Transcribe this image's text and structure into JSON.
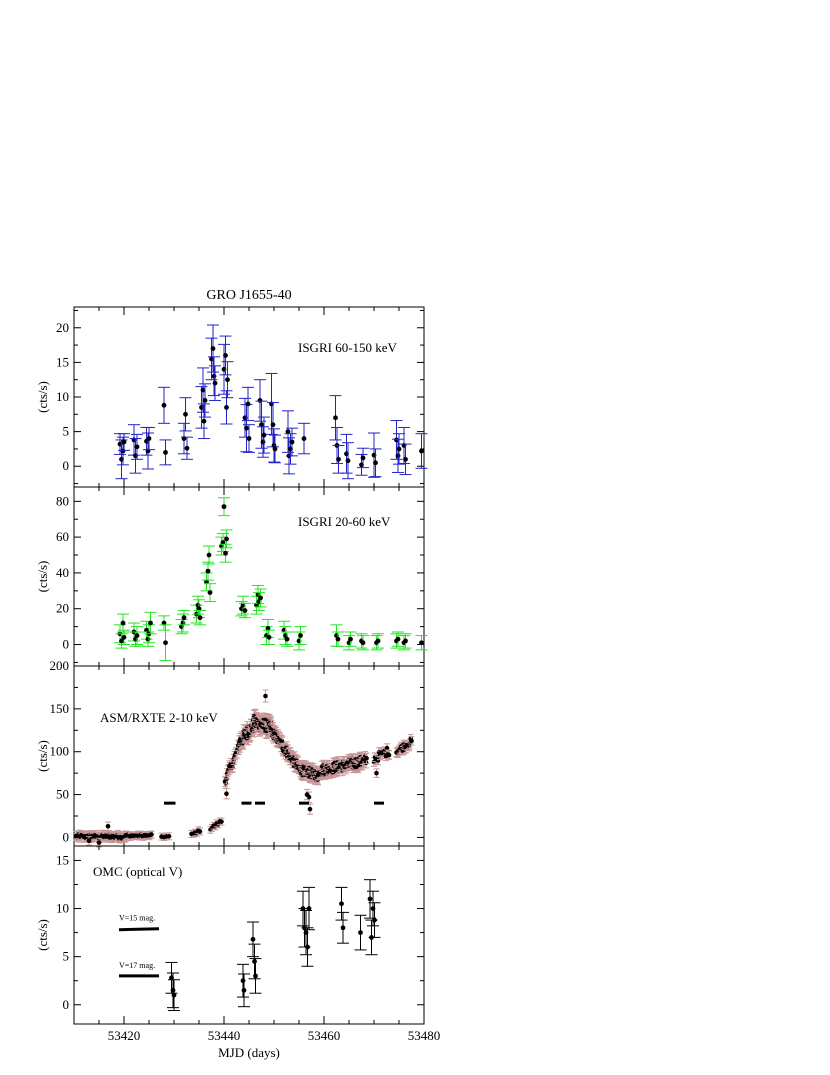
{
  "figure": {
    "title": "GRO J1655-40",
    "xlabel": "MJD (days)",
    "xlim": [
      53410,
      53480
    ],
    "xticks": [
      53420,
      53440,
      53460,
      53480
    ]
  },
  "colors": {
    "points": "#000000",
    "isgri_high_err": "#2323c8",
    "isgri_low_err": "#22e622",
    "asm_err": "#c89696"
  },
  "chart_data": [
    {
      "type": "scatter",
      "label": "ISGRI 60-150 keV",
      "ylabel": "(cts/s)",
      "ylim": [
        -3,
        23
      ],
      "yticks": [
        0,
        5,
        10,
        15,
        20
      ],
      "errcolor": "isgri_high_err",
      "points": [
        [
          53419.2,
          3.2,
          1.5
        ],
        [
          53419.5,
          1.0,
          2.8
        ],
        [
          53419.8,
          2.2,
          2.0
        ],
        [
          53420.0,
          3.5,
          1.2
        ],
        [
          53422.0,
          3.8,
          2.2
        ],
        [
          53422.3,
          1.5,
          2.5
        ],
        [
          53422.6,
          2.8,
          1.8
        ],
        [
          53424.5,
          3.6,
          2.0
        ],
        [
          53424.8,
          2.2,
          2.6
        ],
        [
          53425.0,
          4.0,
          1.6
        ],
        [
          53428.0,
          8.8,
          2.6
        ],
        [
          53428.3,
          2.0,
          1.8
        ],
        [
          53432.0,
          4.0,
          2.2
        ],
        [
          53432.3,
          7.5,
          2.4
        ],
        [
          53432.6,
          2.6,
          1.6
        ],
        [
          53435.5,
          8.5,
          3.0
        ],
        [
          53435.8,
          11.0,
          3.2
        ],
        [
          53436.0,
          6.5,
          2.5
        ],
        [
          53436.2,
          9.5,
          2.4
        ],
        [
          53437.5,
          15.5,
          3.0
        ],
        [
          53437.8,
          17.0,
          3.4
        ],
        [
          53438.0,
          13.0,
          2.8
        ],
        [
          53438.2,
          12.0,
          2.5
        ],
        [
          53440.0,
          14.0,
          3.6
        ],
        [
          53440.3,
          16.0,
          2.8
        ],
        [
          53440.5,
          8.5,
          2.4
        ],
        [
          53440.7,
          12.5,
          2.6
        ],
        [
          53444.2,
          7.0,
          2.8
        ],
        [
          53444.5,
          5.5,
          3.4
        ],
        [
          53444.8,
          9.0,
          2.4
        ],
        [
          53445.0,
          4.0,
          2.0
        ],
        [
          53447.2,
          9.5,
          3.0
        ],
        [
          53447.5,
          6.0,
          3.4
        ],
        [
          53447.8,
          3.5,
          2.2
        ],
        [
          53448.0,
          4.5,
          2.6
        ],
        [
          53449.5,
          9.0,
          4.4
        ],
        [
          53449.8,
          6.0,
          3.2
        ],
        [
          53450.0,
          3.0,
          2.4
        ],
        [
          53450.2,
          2.5,
          2.0
        ],
        [
          53452.8,
          5.0,
          3.0
        ],
        [
          53453.0,
          1.5,
          2.6
        ],
        [
          53453.3,
          2.5,
          2.2
        ],
        [
          53453.6,
          3.5,
          2.0
        ],
        [
          53456.0,
          4.0,
          2.2
        ],
        [
          53462.3,
          7.0,
          3.2
        ],
        [
          53462.6,
          3.0,
          2.6
        ],
        [
          53462.9,
          1.0,
          2.0
        ],
        [
          53464.5,
          1.8,
          2.8
        ],
        [
          53464.8,
          0.8,
          2.6
        ],
        [
          53467.5,
          0.2,
          1.5
        ],
        [
          53467.8,
          1.2,
          1.4
        ],
        [
          53470.0,
          1.6,
          3.2
        ],
        [
          53470.3,
          0.5,
          2.0
        ],
        [
          53474.5,
          3.8,
          2.8
        ],
        [
          53474.8,
          1.5,
          2.4
        ],
        [
          53475.0,
          2.5,
          2.2
        ],
        [
          53476.0,
          3.0,
          2.6
        ],
        [
          53476.3,
          1.0,
          2.2
        ],
        [
          53479.5,
          2.2,
          2.5
        ]
      ]
    },
    {
      "type": "scatter",
      "label": "ISGRI 20-60 keV",
      "ylabel": "(cts/s)",
      "ylim": [
        -12,
        88
      ],
      "yticks": [
        0,
        20,
        40,
        60,
        80
      ],
      "errcolor": "isgri_low_err",
      "points": [
        [
          53419.2,
          6,
          5
        ],
        [
          53419.5,
          2,
          4
        ],
        [
          53419.8,
          12,
          5
        ],
        [
          53420.0,
          4,
          4
        ],
        [
          53422.0,
          7,
          5
        ],
        [
          53422.3,
          3,
          4
        ],
        [
          53422.6,
          5,
          5
        ],
        [
          53424.5,
          8,
          5
        ],
        [
          53424.8,
          3,
          4
        ],
        [
          53425.0,
          6,
          5
        ],
        [
          53425.3,
          12,
          6
        ],
        [
          53428.0,
          12,
          4
        ],
        [
          53428.3,
          1,
          10
        ],
        [
          53431.5,
          10,
          4
        ],
        [
          53431.8,
          12,
          5
        ],
        [
          53432.0,
          15,
          4
        ],
        [
          53434.5,
          17,
          5
        ],
        [
          53434.8,
          22,
          5
        ],
        [
          53435.0,
          20,
          5
        ],
        [
          53435.2,
          15,
          4
        ],
        [
          53436.5,
          35,
          5
        ],
        [
          53436.8,
          41,
          5
        ],
        [
          53437.0,
          50,
          5
        ],
        [
          53437.2,
          29,
          5
        ],
        [
          53439.5,
          55,
          5
        ],
        [
          53439.8,
          57,
          5
        ],
        [
          53440.0,
          77,
          5
        ],
        [
          53440.3,
          51,
          5
        ],
        [
          53440.5,
          59,
          5
        ],
        [
          53443.5,
          20,
          4
        ],
        [
          53443.8,
          22,
          5
        ],
        [
          53444.2,
          19,
          4
        ],
        [
          53446.5,
          22,
          5
        ],
        [
          53446.8,
          28,
          5
        ],
        [
          53447.0,
          24,
          5
        ],
        [
          53447.3,
          26,
          5
        ],
        [
          53448.5,
          5,
          5
        ],
        [
          53448.8,
          9,
          5
        ],
        [
          53449.0,
          4,
          4
        ],
        [
          53452.0,
          8,
          5
        ],
        [
          53452.3,
          5,
          5
        ],
        [
          53452.6,
          3,
          4
        ],
        [
          53455.0,
          2,
          5
        ],
        [
          53455.3,
          5,
          5
        ],
        [
          53462.5,
          5,
          6
        ],
        [
          53462.8,
          3,
          4
        ],
        [
          53465.0,
          1,
          4
        ],
        [
          53465.3,
          3,
          4
        ],
        [
          53467.5,
          2,
          4
        ],
        [
          53467.8,
          1,
          4
        ],
        [
          53470.5,
          1,
          4
        ],
        [
          53470.8,
          2,
          4
        ],
        [
          53474.5,
          2,
          4
        ],
        [
          53474.8,
          3,
          4
        ],
        [
          53476.0,
          1,
          4
        ],
        [
          53476.3,
          2,
          4
        ],
        [
          53479.5,
          1,
          4
        ]
      ]
    },
    {
      "type": "scatter",
      "label": "ASM/RXTE 2-10 keV",
      "ylabel": "(cts/s)",
      "ylim": [
        -10,
        200
      ],
      "yticks": [
        0,
        50,
        100,
        150,
        200
      ],
      "errcolor": "asm_err",
      "bars_y": 40,
      "bars_x": [
        [
          53428.0,
          53430.3
        ],
        [
          53443.5,
          53445.5
        ],
        [
          53446.2,
          53448.2
        ],
        [
          53455.0,
          53457.0
        ],
        [
          53470.0,
          53472.0
        ]
      ],
      "series": [
        {
          "x0": 53410.5,
          "x1": 53420.5,
          "n": 70,
          "base": 1,
          "slope": 0,
          "noise": 2.5,
          "err": 5,
          "extra": [
            [
              53416.8,
              13
            ],
            [
              53413.0,
              -4
            ],
            [
              53415.0,
              -6
            ]
          ]
        },
        {
          "x0": 53420.5,
          "x1": 53425.5,
          "n": 25,
          "base": 2,
          "slope": 0,
          "noise": 1.5,
          "err": 4,
          "extra": []
        },
        {
          "x0": 53427.5,
          "x1": 53429.0,
          "n": 4,
          "base": 1,
          "slope": 0,
          "noise": 1,
          "err": 4,
          "extra": []
        },
        {
          "x0": 53433.5,
          "x1": 53435.2,
          "n": 6,
          "base": 3,
          "slope": 3,
          "noise": 1.5,
          "err": 4,
          "extra": []
        },
        {
          "x0": 53437.3,
          "x1": 53439.5,
          "n": 8,
          "base": 10,
          "slope": 4,
          "noise": 2,
          "err": 4,
          "extra": []
        },
        {
          "x0": 53440.2,
          "x1": 53443.0,
          "n": 20,
          "base": 66,
          "slope": 14,
          "noise": 5,
          "err": 6,
          "extra": [
            [
              53440.5,
              51
            ]
          ]
        },
        {
          "x0": 53443.0,
          "x1": 53446.0,
          "n": 40,
          "base": 110,
          "slope": 7,
          "noise": 8,
          "err": 7,
          "extra": []
        },
        {
          "x0": 53446.0,
          "x1": 53449.5,
          "n": 60,
          "base": 135,
          "slope": -2,
          "noise": 8,
          "err": 7,
          "extra": [
            [
              53448.3,
              165
            ]
          ]
        },
        {
          "x0": 53449.5,
          "x1": 53455.0,
          "n": 70,
          "base": 125,
          "slope": -8,
          "noise": 6,
          "err": 6,
          "extra": []
        },
        {
          "x0": 53455.0,
          "x1": 53459.0,
          "n": 60,
          "base": 80,
          "slope": -2,
          "noise": 6,
          "err": 6,
          "extra": [
            [
              53457.2,
              33
            ],
            [
              53457.0,
              47
            ],
            [
              53456.6,
              50
            ]
          ]
        },
        {
          "x0": 53459.0,
          "x1": 53468.5,
          "n": 110,
          "base": 78,
          "slope": 1.2,
          "noise": 6,
          "err": 6,
          "extra": []
        },
        {
          "x0": 53470.0,
          "x1": 53473.0,
          "n": 16,
          "base": 92,
          "slope": 3,
          "noise": 5,
          "err": 5,
          "extra": [
            [
              53470.5,
              75
            ]
          ]
        },
        {
          "x0": 53474.5,
          "x1": 53477.5,
          "n": 20,
          "base": 100,
          "slope": 4,
          "noise": 4,
          "err": 5,
          "extra": []
        }
      ]
    },
    {
      "type": "scatter",
      "label": "OMC (optical V)",
      "ylabel": "(cts/s)",
      "ylim": [
        -2,
        16.5
      ],
      "yticks": [
        0,
        5,
        10,
        15
      ],
      "errcolor": "points",
      "ref_lines": [
        {
          "label": "V=15 mag.",
          "y": 7.8,
          "x0": 53419.0,
          "x1": 53427.0,
          "y1": 7.9
        },
        {
          "label": "V=17 mag.",
          "y": 3.0,
          "x0": 53419.0,
          "x1": 53427.0,
          "y1": 3.0
        }
      ],
      "points": [
        [
          53429.5,
          2.8,
          1.6
        ],
        [
          53429.8,
          1.5,
          1.8
        ],
        [
          53430.0,
          1.0,
          1.6
        ],
        [
          53443.8,
          2.5,
          1.7
        ],
        [
          53444.0,
          1.5,
          1.7
        ],
        [
          53445.8,
          6.8,
          1.8
        ],
        [
          53446.1,
          4.5,
          1.8
        ],
        [
          53446.3,
          3.0,
          1.8
        ],
        [
          53455.8,
          10.0,
          1.8
        ],
        [
          53456.1,
          8.0,
          2.0
        ],
        [
          53456.4,
          7.5,
          2.3
        ],
        [
          53456.7,
          6.0,
          2.0
        ],
        [
          53457.0,
          10.0,
          2.2
        ],
        [
          53463.5,
          10.5,
          1.7
        ],
        [
          53463.8,
          8.0,
          1.6
        ],
        [
          53467.3,
          7.5,
          1.8
        ],
        [
          53469.2,
          11.0,
          2.0
        ],
        [
          53469.5,
          7.0,
          1.8
        ],
        [
          53469.8,
          10.0,
          1.8
        ],
        [
          53470.1,
          8.8,
          1.8
        ]
      ]
    }
  ]
}
